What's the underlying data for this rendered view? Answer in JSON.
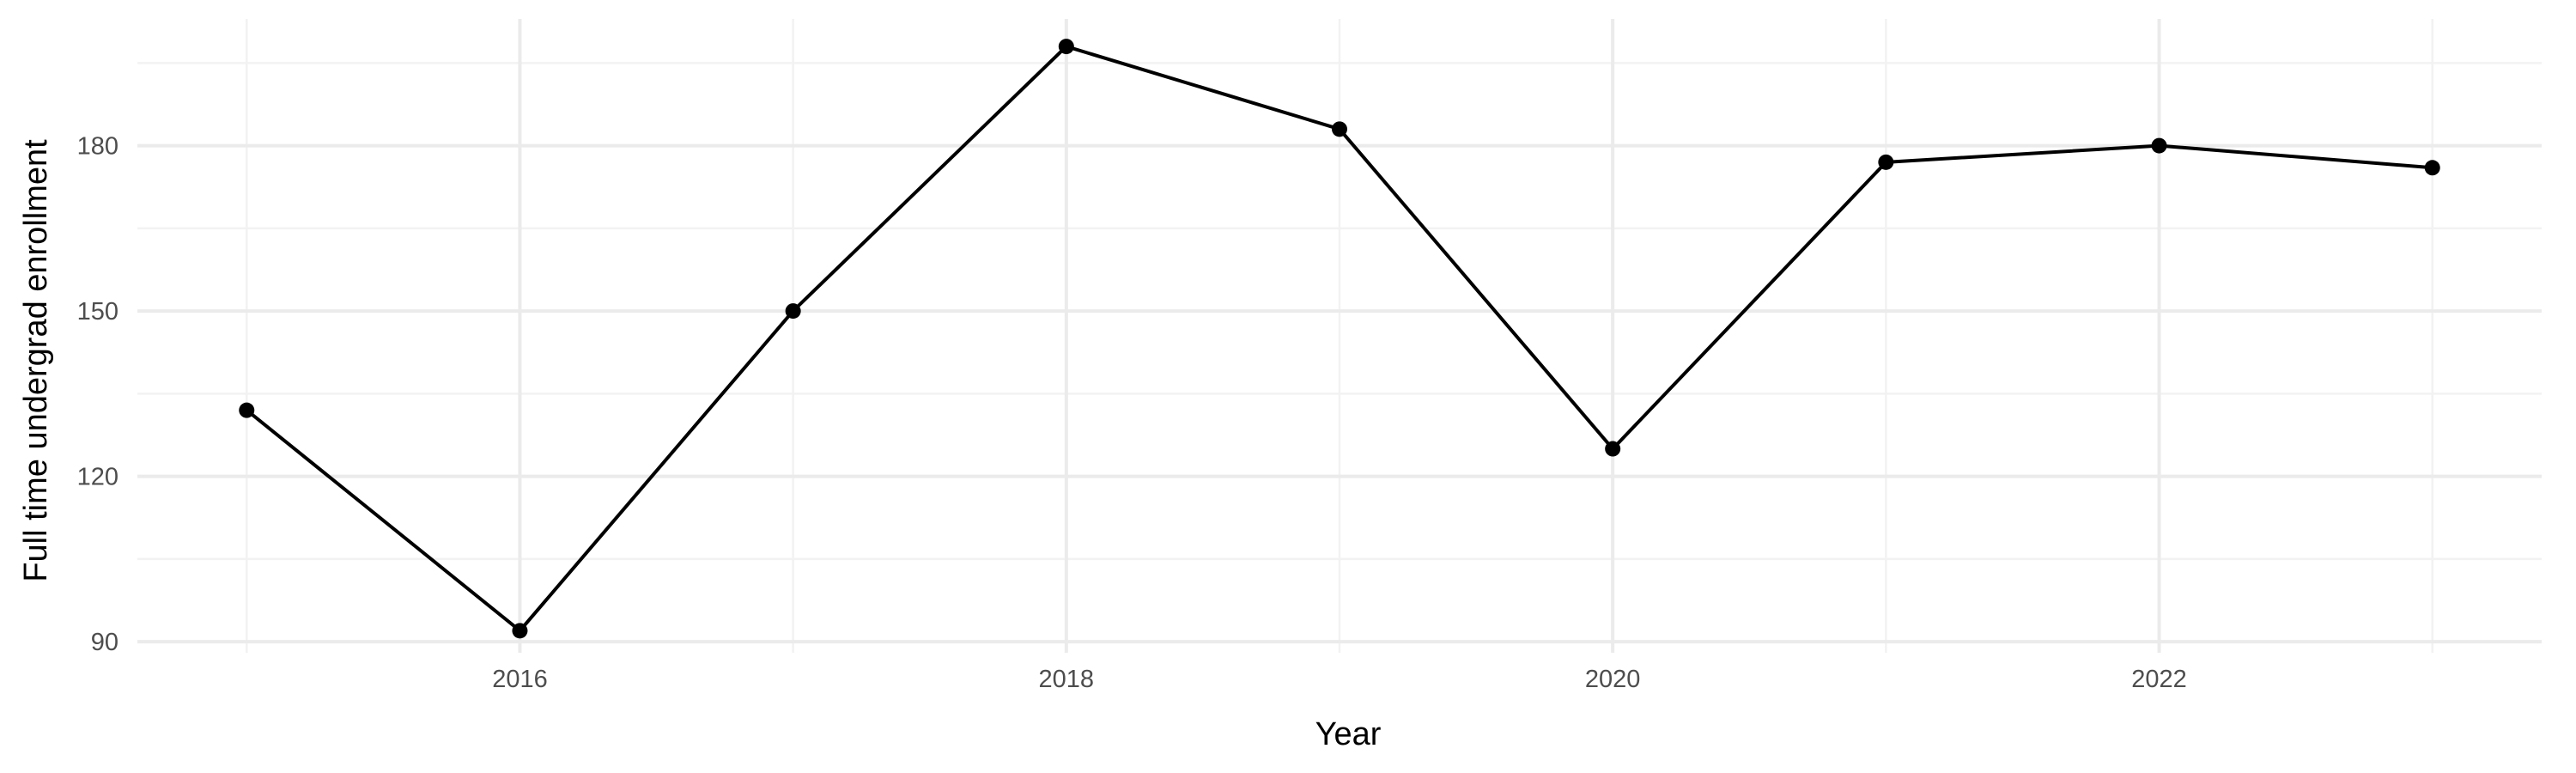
{
  "chart_data": {
    "type": "line",
    "title": "",
    "xlabel": "Year",
    "ylabel": "Full time undergrad enrollment",
    "x": [
      2015,
      2016,
      2017,
      2018,
      2019,
      2020,
      2021,
      2022,
      2023
    ],
    "series": [
      {
        "values": [
          132,
          92,
          150,
          198,
          183,
          125,
          177,
          180,
          176
        ]
      }
    ],
    "x_ticks": [
      2016,
      2018,
      2020,
      2022
    ],
    "x_tick_labels": [
      "2016",
      "2018",
      "2020",
      "2022"
    ],
    "y_ticks": [
      90,
      120,
      150,
      180
    ],
    "y_tick_labels": [
      "90",
      "120",
      "150",
      "180"
    ],
    "xlim": [
      2014.6,
      2023.4
    ],
    "ylim": [
      88,
      203
    ],
    "grid": true,
    "legend": "none",
    "colors": {
      "line": "#000000",
      "point": "#000000",
      "grid_major": "#ebebeb",
      "grid_minor": "#f2f2f2",
      "tick_text": "#4d4d4d",
      "background": "#ffffff"
    }
  }
}
